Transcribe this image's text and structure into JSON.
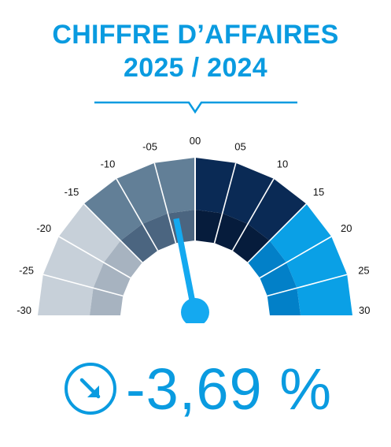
{
  "header": {
    "title_line1": "CHIFFRE D’AFFAIRES",
    "title_line2": "2025 / 2024"
  },
  "colors": {
    "accent": "#0a9be0",
    "needle": "#14a9f0",
    "negative_light": "#c7d0d9",
    "negative_light_inner": "#a7b3c0",
    "negative_mid": "#627f97",
    "negative_mid_inner": "#4b6580",
    "zero_band": "#5f7e97",
    "positive_dark": "#0a2a55",
    "positive_dark_inner": "#061c3c",
    "positive_bright": "#0aa0e6",
    "positive_bright_inner": "#0280c8",
    "tick_text": "#111111"
  },
  "chart_data": {
    "type": "gauge",
    "title": "CHIFFRE D’AFFAIRES 2025 / 2024",
    "range": [
      -30,
      30
    ],
    "tick_labels": [
      "-30",
      "-25",
      "-20",
      "-15",
      "-10",
      "-05",
      "00",
      "05",
      "10",
      "15",
      "20",
      "25",
      "30"
    ],
    "tick_values": [
      -30,
      -25,
      -20,
      -15,
      -10,
      -5,
      0,
      5,
      10,
      15,
      20,
      25,
      30
    ],
    "value": -3.69,
    "value_label": "-3,69 %",
    "trend": "down"
  },
  "result": {
    "icon": "arrow-down-right-circle-icon",
    "value_text": "-3,69 %"
  }
}
